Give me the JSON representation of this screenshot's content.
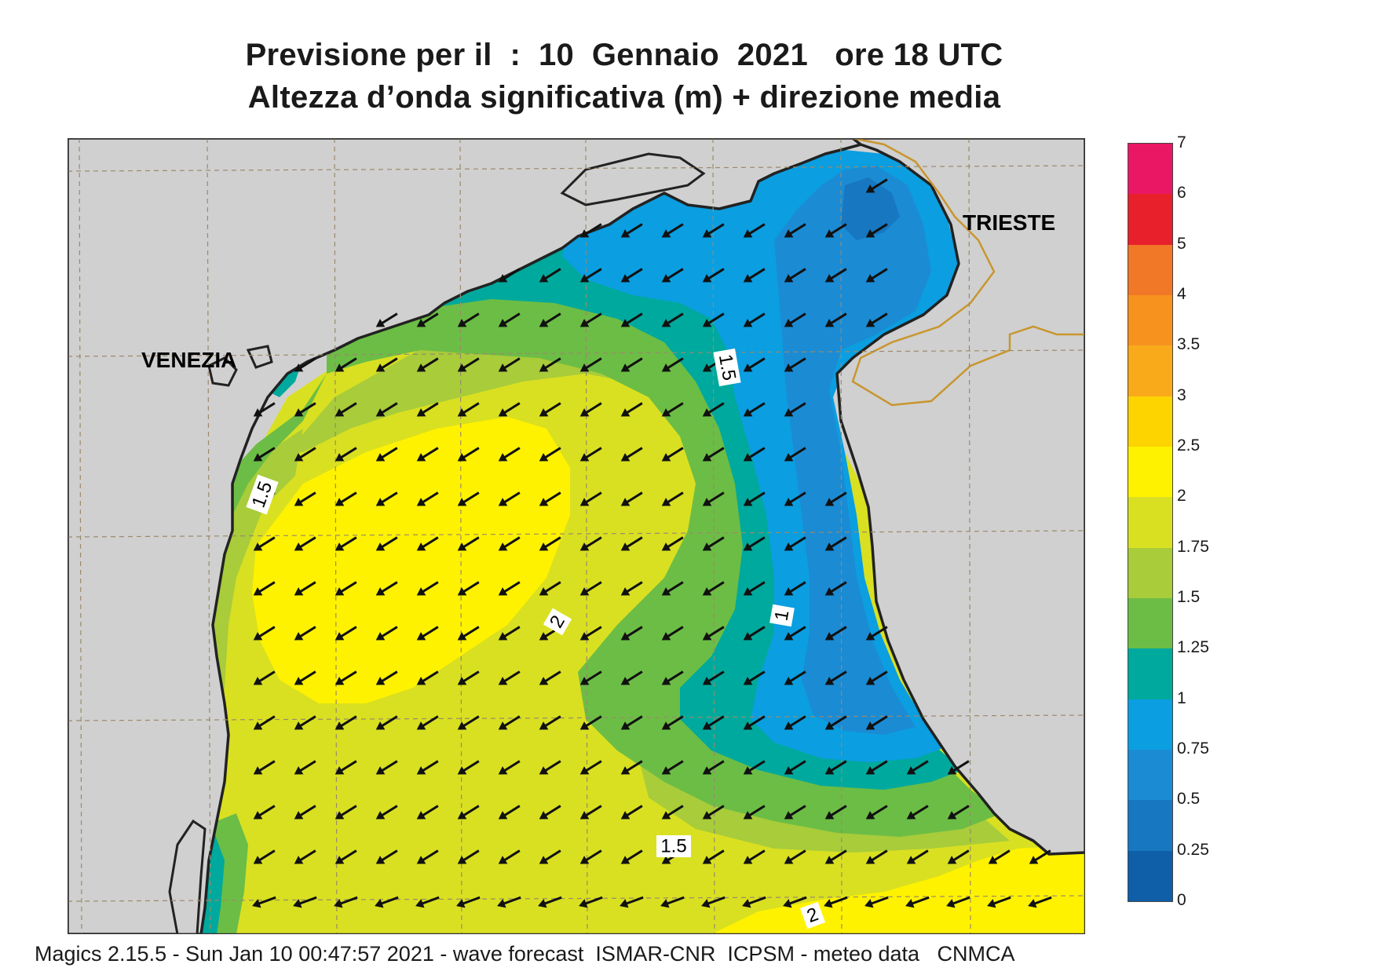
{
  "title": {
    "line1": "Previsione per il  :  10  Gennaio  2021   ore 18 UTC",
    "line2": "Altezza d’onda significativa (m) + direzione media"
  },
  "map": {
    "cities": {
      "venezia": "VENEZIA",
      "trieste": "TRIESTE"
    },
    "contour_labels": [
      "1.5",
      "1.5",
      "1.5",
      "1",
      "2",
      "2"
    ],
    "arrow_direction": "south-west",
    "colors": {
      "land": "#d0d0d0",
      "coastline": "#222222",
      "border": "#c8962e",
      "grid": "#9a8a6a"
    }
  },
  "legend": {
    "unit": "m",
    "ticks": [
      "7",
      "6",
      "5",
      "4",
      "3.5",
      "3",
      "2.5",
      "2",
      "1.75",
      "1.5",
      "1.25",
      "1",
      "0.75",
      "0.5",
      "0.25",
      "0"
    ],
    "bands": [
      {
        "range": "6-7",
        "color": "#ea1764"
      },
      {
        "range": "5-6",
        "color": "#e8202c"
      },
      {
        "range": "4-5",
        "color": "#f07827"
      },
      {
        "range": "3.5-4",
        "color": "#f7921e"
      },
      {
        "range": "3-3.5",
        "color": "#f9aa1b"
      },
      {
        "range": "2.5-3",
        "color": "#fdd300"
      },
      {
        "range": "2-2.5",
        "color": "#fff200"
      },
      {
        "range": "1.75-2",
        "color": "#d9e021"
      },
      {
        "range": "1.5-1.75",
        "color": "#a8cc3a"
      },
      {
        "range": "1.25-1.5",
        "color": "#6cbd45"
      },
      {
        "range": "1-1.25",
        "color": "#00a99d"
      },
      {
        "range": "0.75-1",
        "color": "#0b9ee0"
      },
      {
        "range": "0.5-0.75",
        "color": "#1b8bd4"
      },
      {
        "range": "0.25-0.5",
        "color": "#1777c1"
      },
      {
        "range": "0-0.25",
        "color": "#0e5ea8"
      }
    ]
  },
  "footer": "Magics 2.15.5 - Sun Jan 10 00:47:57 2021 - wave forecast  ISMAR-CNR  ICPSM - meteo data   CNMCA"
}
